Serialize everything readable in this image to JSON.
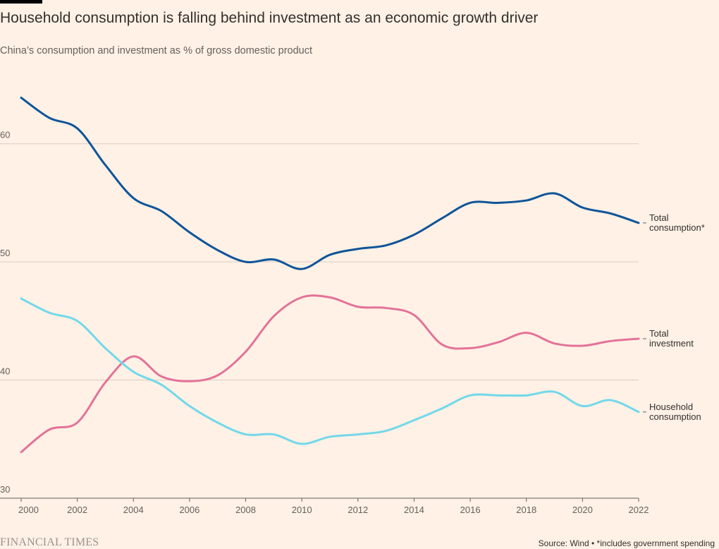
{
  "header": {
    "title": "Household consumption is falling behind investment as an economic growth driver",
    "subtitle": "China’s consumption and investment as % of gross domestic product"
  },
  "footer": {
    "brand": "FINANCIAL TIMES",
    "source": "Source: Wind • *includes government spending"
  },
  "colors": {
    "background": "#FFF1E5",
    "gridline": "#D9CCC1",
    "total_consumption": "#0F5499",
    "total_investment": "#E3729A",
    "household_consumption": "#72D8EA"
  },
  "chart_data": {
    "type": "line",
    "xlabel": "",
    "ylabel": "",
    "xlim": [
      2000,
      2022
    ],
    "ylim": [
      30,
      65
    ],
    "x_ticks": [
      2000,
      2002,
      2004,
      2006,
      2008,
      2010,
      2012,
      2014,
      2016,
      2018,
      2020,
      2022
    ],
    "y_ticks": [
      30,
      40,
      50,
      60
    ],
    "grid": "horizontal",
    "legend": "direct labels at right end of lines",
    "x": [
      2000,
      2001,
      2002,
      2003,
      2004,
      2005,
      2006,
      2007,
      2008,
      2009,
      2010,
      2011,
      2012,
      2013,
      2014,
      2015,
      2016,
      2017,
      2018,
      2019,
      2020,
      2021,
      2022
    ],
    "series": [
      {
        "name": "Total consumption*",
        "label_lines": [
          "Total",
          "consumption*"
        ],
        "color_key": "total_consumption",
        "values": [
          63.9,
          62.2,
          61.3,
          58.2,
          55.4,
          54.3,
          52.5,
          51.0,
          50.0,
          50.2,
          49.4,
          50.6,
          51.1,
          51.4,
          52.3,
          53.7,
          55.0,
          55.0,
          55.2,
          55.8,
          54.6,
          54.1,
          53.3
        ]
      },
      {
        "name": "Total investment",
        "label_lines": [
          "Total",
          "investment"
        ],
        "color_key": "total_investment",
        "values": [
          33.9,
          35.8,
          36.4,
          39.8,
          42.0,
          40.3,
          39.9,
          40.4,
          42.4,
          45.4,
          47.0,
          47.0,
          46.2,
          46.1,
          45.5,
          43.0,
          42.7,
          43.2,
          44.0,
          43.1,
          42.9,
          43.3,
          43.5
        ]
      },
      {
        "name": "Household consumption",
        "label_lines": [
          "Household",
          "consumption"
        ],
        "color_key": "household_consumption",
        "values": [
          46.9,
          45.7,
          45.0,
          42.7,
          40.7,
          39.6,
          37.8,
          36.4,
          35.4,
          35.4,
          34.6,
          35.2,
          35.4,
          35.7,
          36.6,
          37.6,
          38.7,
          38.7,
          38.7,
          39.0,
          37.8,
          38.3,
          37.3
        ]
      }
    ]
  }
}
